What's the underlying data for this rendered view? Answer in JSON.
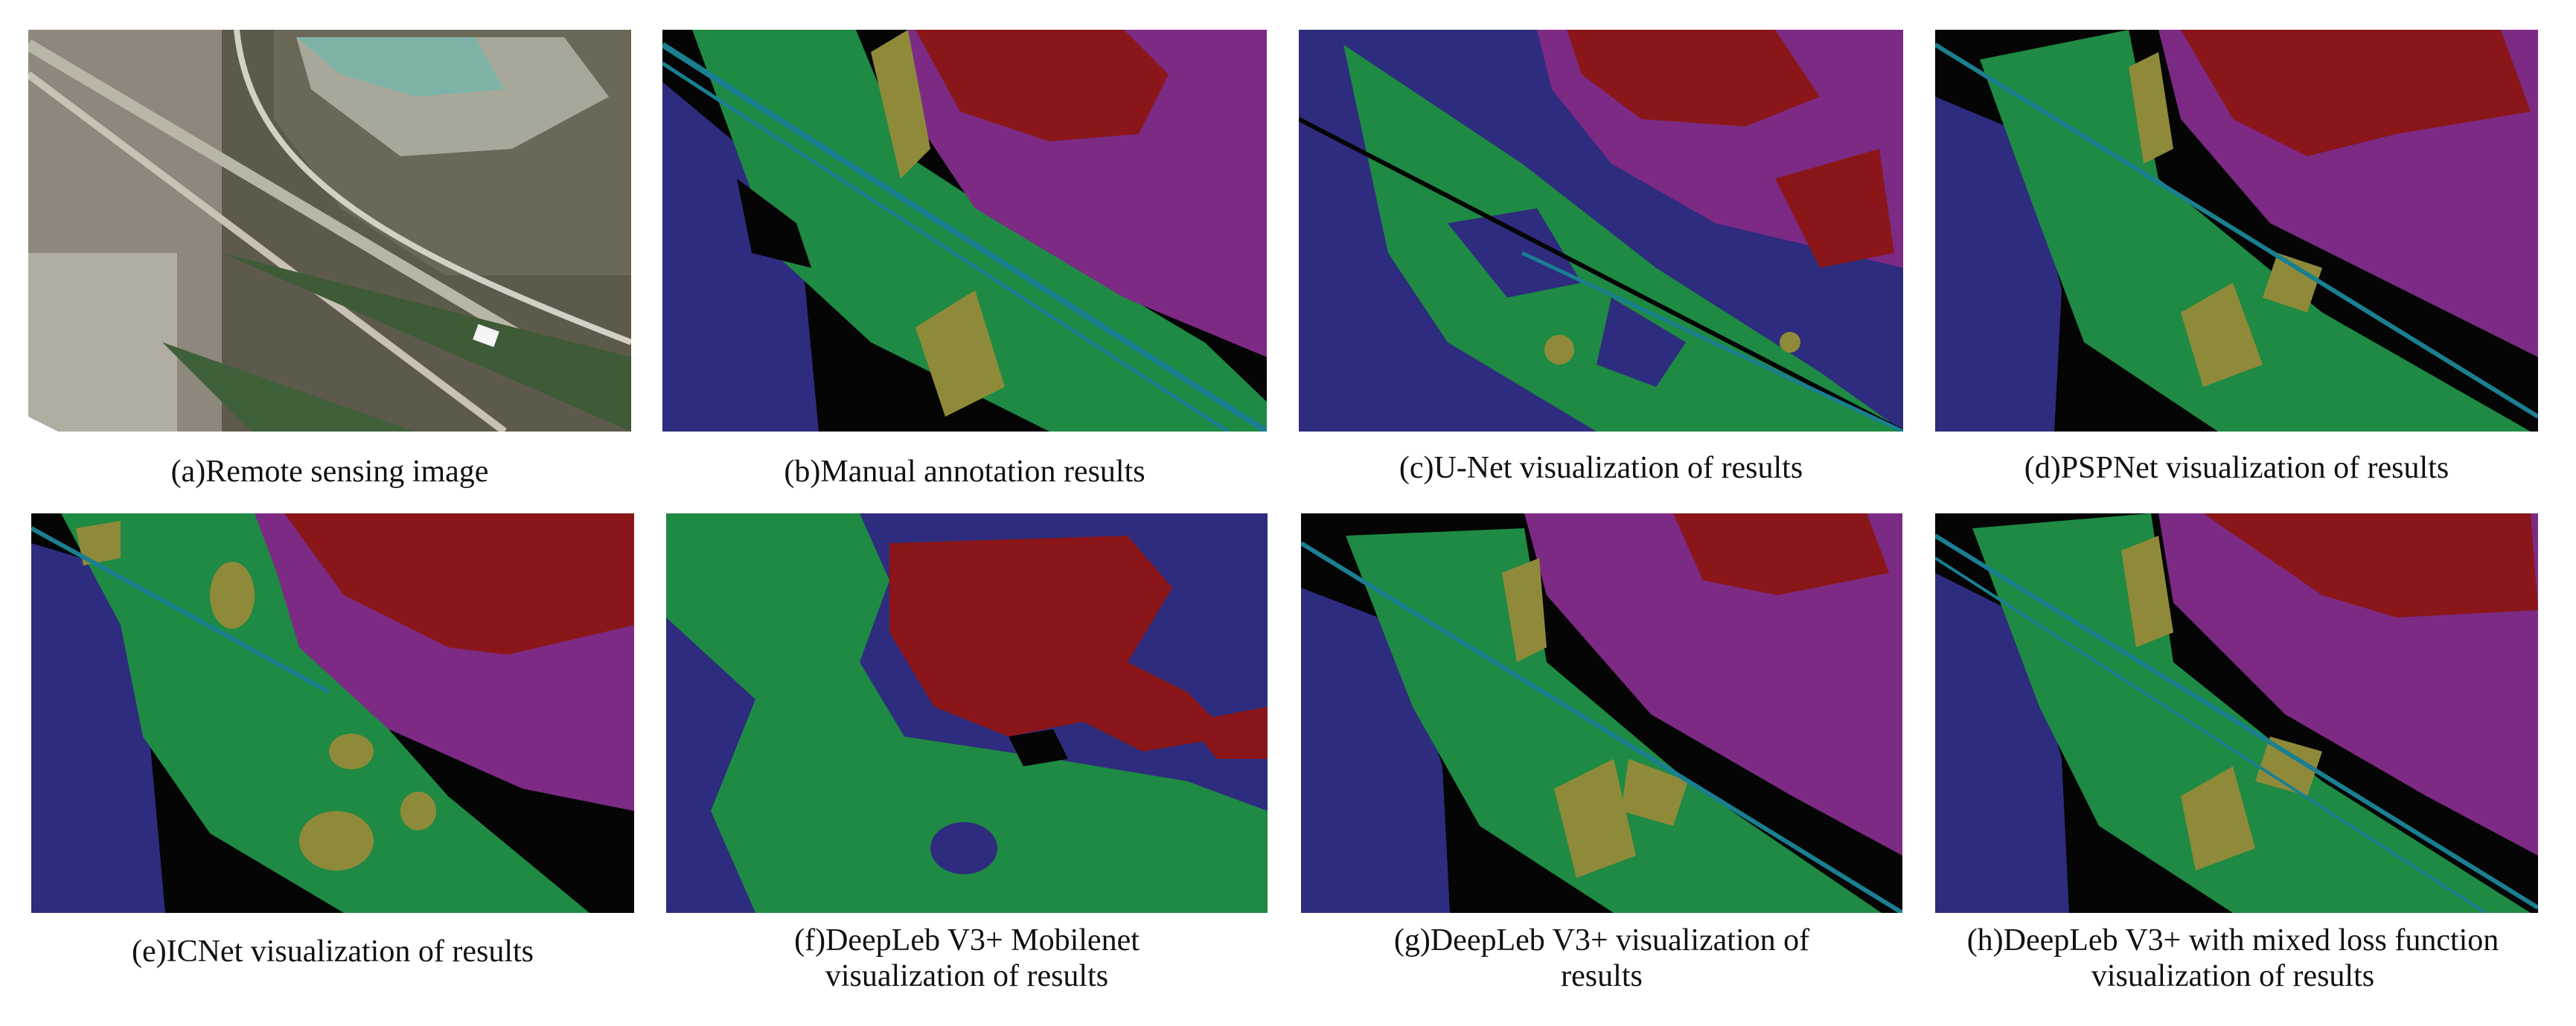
{
  "figure": {
    "panels": [
      {
        "id": "a",
        "caption_lines": [
          "(a)Remote sensing image"
        ]
      },
      {
        "id": "b",
        "caption_lines": [
          "(b)Manual annotation results"
        ]
      },
      {
        "id": "c",
        "caption_lines": [
          "(c)U-Net visualization of results"
        ]
      },
      {
        "id": "d",
        "caption_lines": [
          "(d)PSPNet visualization of results"
        ]
      },
      {
        "id": "e",
        "caption_lines": [
          "(e)ICNet visualization of results"
        ]
      },
      {
        "id": "f",
        "caption_lines": [
          "(f)DeepLeb V3+  Mobilenet",
          "visualization of results"
        ]
      },
      {
        "id": "g",
        "caption_lines": [
          "(g)DeepLeb V3+ visualization of",
          "results"
        ]
      },
      {
        "id": "h",
        "caption_lines": [
          "(h)DeepLeb V3+ with mixed loss function",
          "visualization of results"
        ]
      }
    ]
  },
  "class_colors": {
    "navy": "#2e2c7e",
    "green": "#1e8a43",
    "olive": "#8f8a3a",
    "purple": "#7d2a84",
    "red": "#8a1619",
    "black": "#050505",
    "teal": "#1a7f91"
  }
}
